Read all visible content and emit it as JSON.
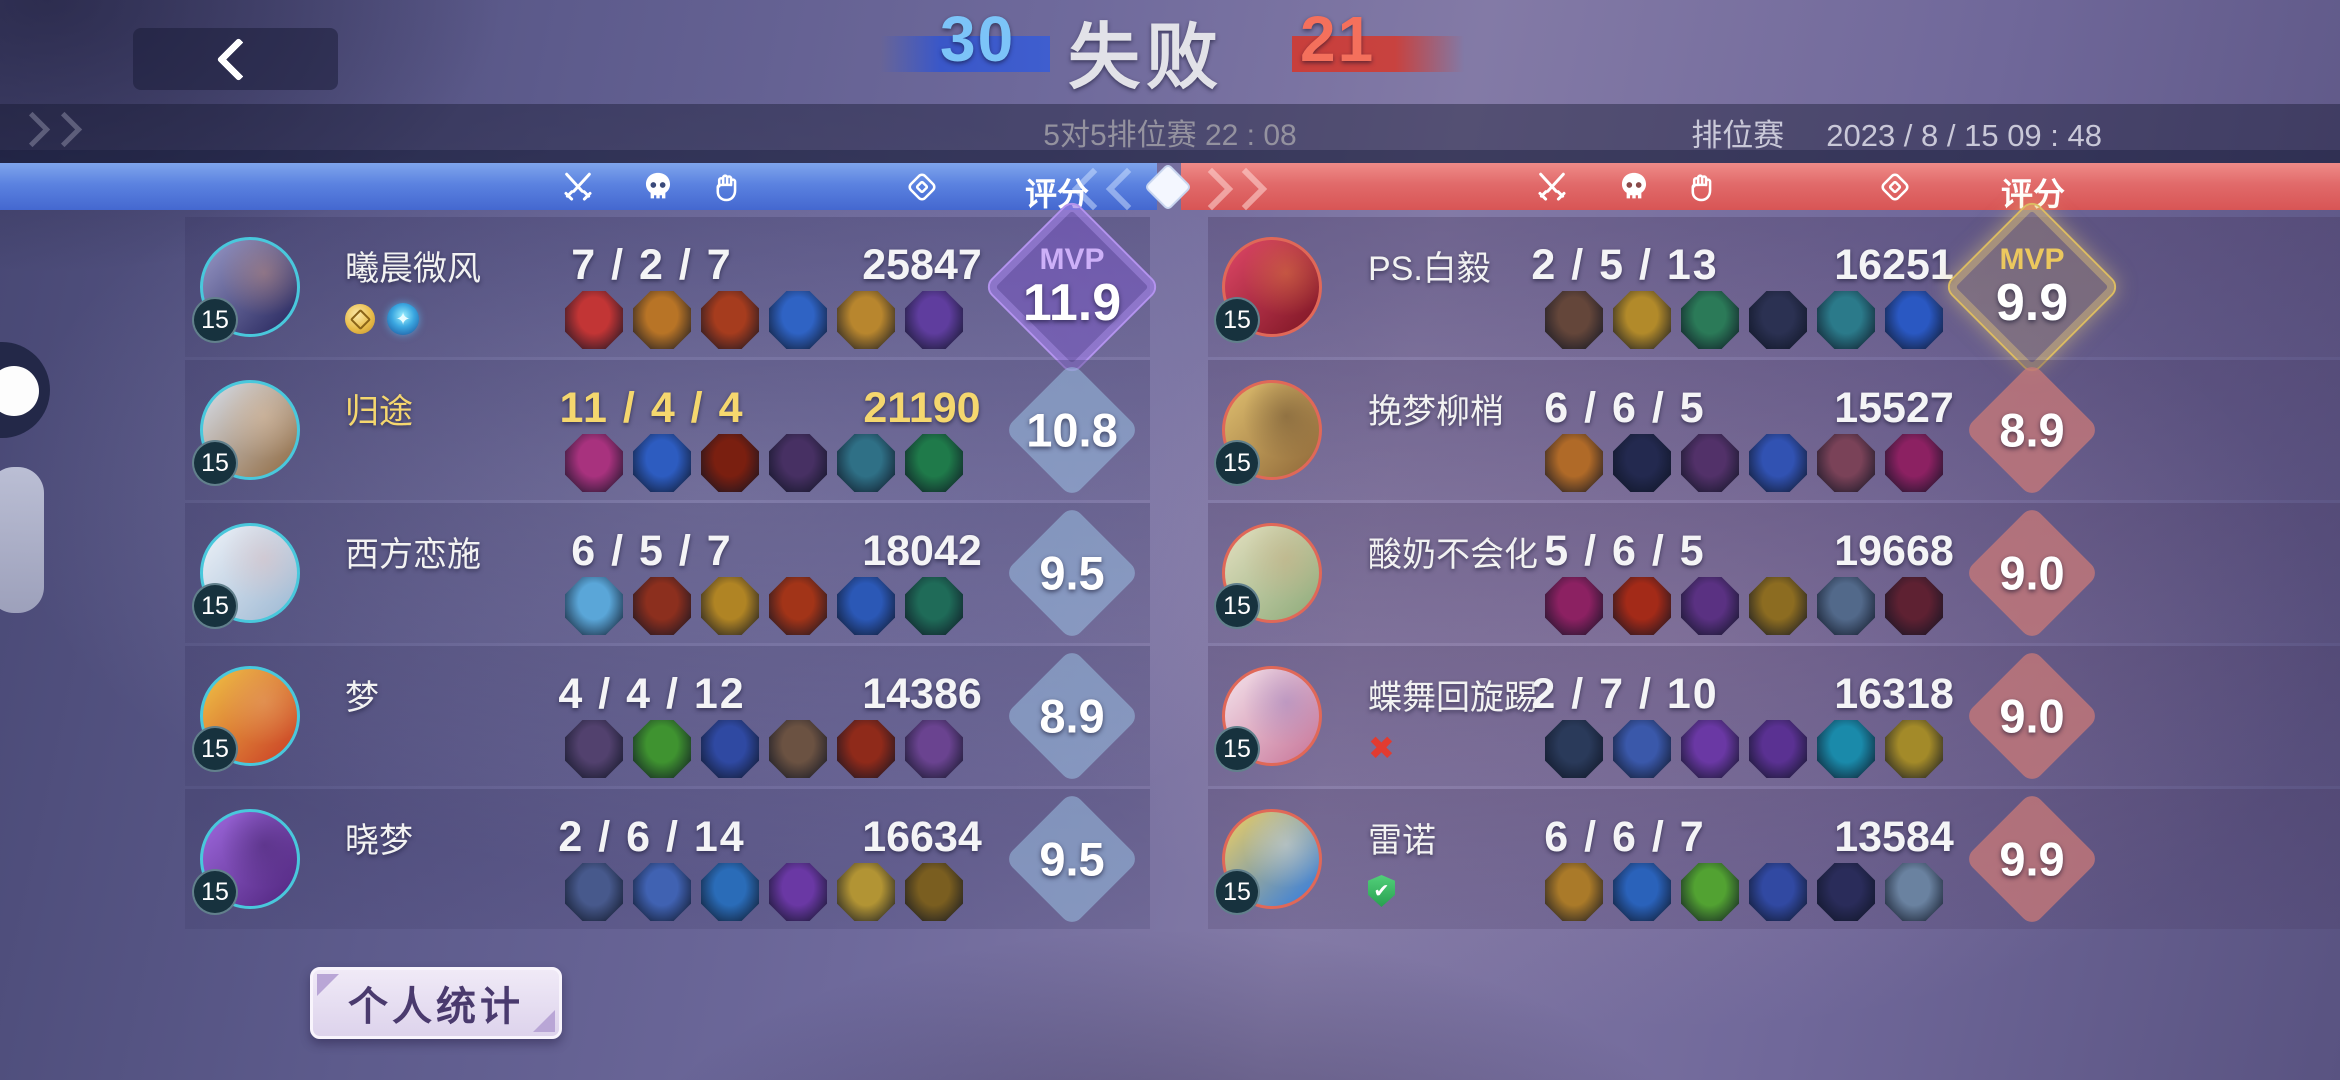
{
  "labels": {
    "mvp": "MVP",
    "rating_header": "评分"
  },
  "header": {
    "score_left": "30",
    "result": "失败",
    "score_right": "21",
    "subtitle": "5对5排位赛 22 : 08",
    "mode": "排位赛",
    "datetime": "2023 / 8 / 15  09 : 48"
  },
  "column_icons": {
    "kills": "crossed-swords",
    "deaths": "skull",
    "assists": "hand",
    "gold": "coin-diamond"
  },
  "teams": {
    "left": {
      "side": "blue",
      "players": [
        {
          "name": "曦晨微风",
          "level": "15",
          "kda": "7 / 2 / 7",
          "gold": "25847",
          "rating": "11.9",
          "mvp": true,
          "highlight": false,
          "badges": [
            "coin",
            "emblem"
          ],
          "avatar": [
            "#9a9ac8",
            "#34346a",
            "#d89878"
          ],
          "items": [
            "#c23535",
            "#b87426",
            "#a63c1e",
            "#2f63c4",
            "#b8862e",
            "#5f3d9e"
          ]
        },
        {
          "name": "归途",
          "level": "15",
          "kda": "11 / 4 / 4",
          "gold": "21190",
          "rating": "10.8",
          "mvp": false,
          "highlight": true,
          "badges": [],
          "avatar": [
            "#d8e0ec",
            "#9a7a58",
            "#e8c4a0"
          ],
          "items": [
            "#a8327e",
            "#2d5cc0",
            "#7a1f10",
            "#473063",
            "#2f7086",
            "#1f7a4a"
          ]
        },
        {
          "name": "西方恋施",
          "level": "15",
          "kda": "6 / 5 / 7",
          "gold": "18042",
          "rating": "9.5",
          "mvp": false,
          "highlight": false,
          "badges": [],
          "avatar": [
            "#eef2f8",
            "#a8c0d8",
            "#e0b8b8"
          ],
          "items": [
            "#5aa6d8",
            "#8c2f1e",
            "#b08424",
            "#a23418",
            "#2b58b6",
            "#1f6b58"
          ]
        },
        {
          "name": "梦",
          "level": "15",
          "kda": "4 / 4 / 12",
          "gold": "14386",
          "rating": "8.9",
          "mvp": false,
          "highlight": false,
          "badges": [],
          "avatar": [
            "#f0c446",
            "#cf4f2a",
            "#e8a878"
          ],
          "items": [
            "#52416e",
            "#3f9330",
            "#2f49a2",
            "#6b5242",
            "#8f2a1a",
            "#6a4390"
          ]
        },
        {
          "name": "晓梦",
          "level": "15",
          "kda": "2 / 6 / 14",
          "gold": "16634",
          "rating": "9.5",
          "mvp": false,
          "highlight": false,
          "badges": [],
          "avatar": [
            "#a06ae0",
            "#5a2e8a",
            "#3a1e5e"
          ],
          "items": [
            "#47598c",
            "#4062b2",
            "#2a6cb8",
            "#6a38a4",
            "#b29434",
            "#7a5e20"
          ]
        }
      ]
    },
    "right": {
      "side": "red",
      "players": [
        {
          "name": "PS.白毅",
          "level": "15",
          "kda": "2 / 5 / 13",
          "gold": "16251",
          "rating": "9.9",
          "mvp": true,
          "highlight": false,
          "badges": [],
          "avatar": [
            "#e04868",
            "#8a1c2c",
            "#e89040"
          ],
          "items": [
            "#64463a",
            "#b28a2a",
            "#2b7a58",
            "#2b3152",
            "#2b7a8a",
            "#2a58c2"
          ]
        },
        {
          "name": "挽梦柳梢",
          "level": "15",
          "kda": "6 / 6 / 5",
          "gold": "15527",
          "rating": "8.9",
          "mvp": false,
          "highlight": false,
          "badges": [],
          "avatar": [
            "#e0c070",
            "#9a7440",
            "#584028"
          ],
          "items": [
            "#b06a28",
            "#23294f",
            "#523169",
            "#3152b2",
            "#7a4258",
            "#8c2162"
          ]
        },
        {
          "name": "酸奶不会化",
          "level": "15",
          "kda": "5 / 6 / 5",
          "gold": "19668",
          "rating": "9.0",
          "mvp": false,
          "highlight": false,
          "badges": [],
          "avatar": [
            "#e4e0c0",
            "#9ab284",
            "#caa87c"
          ],
          "items": [
            "#8c2162",
            "#a32a18",
            "#5a3182",
            "#8c6c21",
            "#52698a",
            "#5e2132"
          ]
        },
        {
          "name": "蝶舞回旋踢",
          "level": "15",
          "kda": "2 / 7 / 10",
          "gold": "16318",
          "rating": "9.0",
          "mvp": false,
          "highlight": false,
          "badges": [
            "afk"
          ],
          "avatar": [
            "#f4e4ec",
            "#ce84a4",
            "#8e7cc0"
          ],
          "items": [
            "#2a3a5a",
            "#3a58aa",
            "#6a38a4",
            "#5a3192",
            "#1a8aaa",
            "#a38a29"
          ]
        },
        {
          "name": "雷诺",
          "level": "15",
          "kda": "6 / 6 / 7",
          "gold": "13584",
          "rating": "9.9",
          "mvp": false,
          "highlight": false,
          "badges": [
            "shield"
          ],
          "avatar": [
            "#f0d060",
            "#4a86d0",
            "#e8e8f0"
          ],
          "items": [
            "#aa7a29",
            "#2a62ba",
            "#52a232",
            "#3149a2",
            "#2a2c5a",
            "#6a82a0"
          ]
        }
      ]
    }
  },
  "footer": {
    "personal_stats": "个人统计"
  },
  "colors": {
    "blue_bar": "#5b82e0",
    "red_bar": "#e16a6a",
    "highlight": "#f5d76e"
  }
}
